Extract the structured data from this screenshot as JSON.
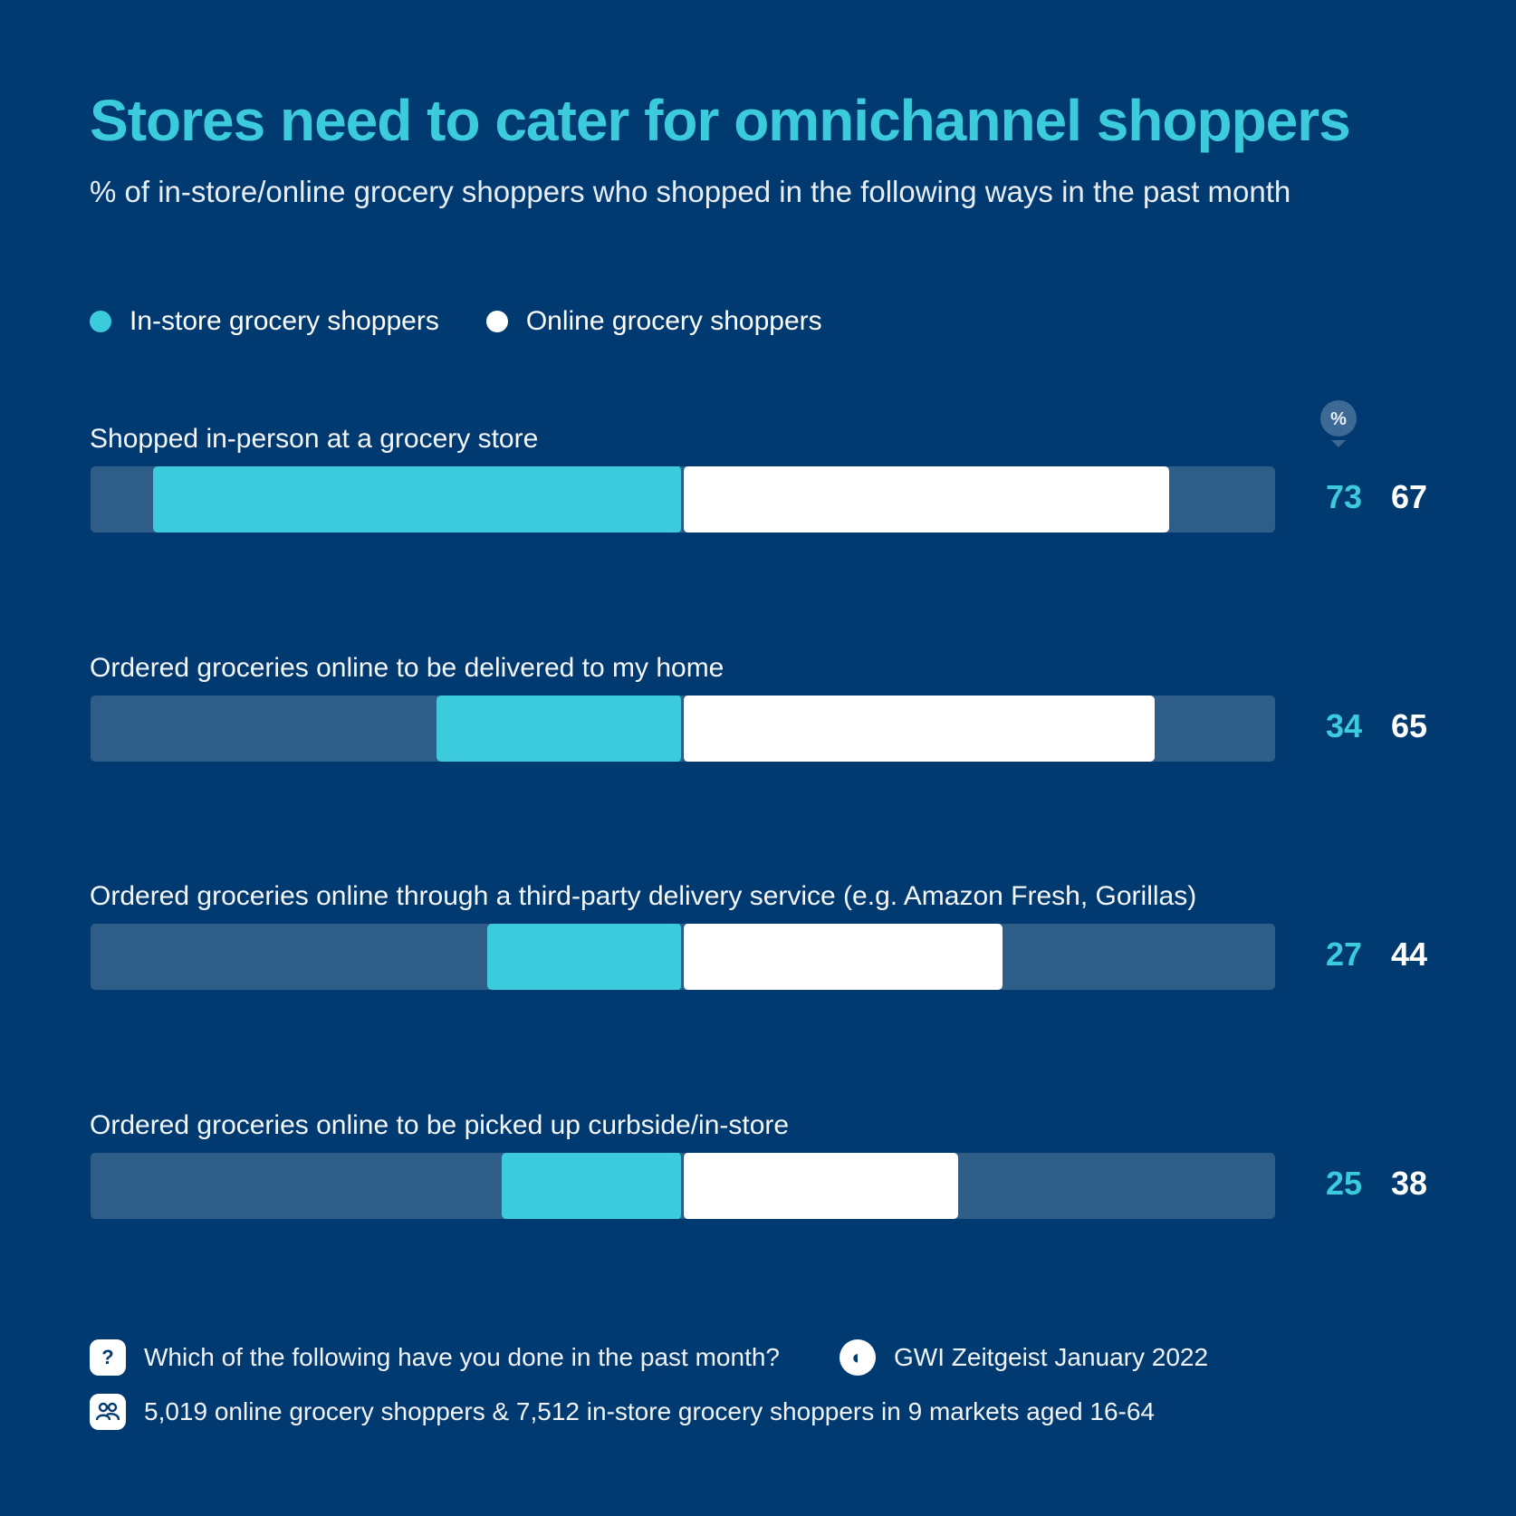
{
  "header": {
    "title": "Stores need to cater for omnichannel shoppers",
    "subtitle": "% of in-store/online grocery shoppers who shopped in the following ways in the past month"
  },
  "legend": {
    "in_store": "In-store grocery shoppers",
    "online": "Online grocery shoppers"
  },
  "badge": "%",
  "colors": {
    "background": "#003a70",
    "in_store": "#3ccbdc",
    "online": "#ffffff",
    "track": "#2e5d88"
  },
  "chart_data": {
    "type": "bar",
    "orientation": "diverging-horizontal",
    "title": "Stores need to cater for omnichannel shoppers",
    "categories": [
      "Shopped in-person at a grocery store",
      "Ordered groceries online to be delivered to my home",
      "Ordered groceries online through a third-party delivery service (e.g. Amazon Fresh, Gorillas)",
      "Ordered groceries online to be picked up curbside/in-store"
    ],
    "series": [
      {
        "name": "In-store grocery shoppers",
        "values": [
          73,
          34,
          27,
          25
        ]
      },
      {
        "name": "Online grocery shoppers",
        "values": [
          67,
          65,
          44,
          38
        ]
      }
    ],
    "unit": "%",
    "xlim": [
      0,
      80
    ]
  },
  "footer": {
    "question": "Which of the following have you done in the past month?",
    "source": "GWI Zeitgeist January 2022",
    "sample": "5,019 online grocery shoppers & 7,512 in-store grocery shoppers in 9 markets aged 16-64"
  }
}
